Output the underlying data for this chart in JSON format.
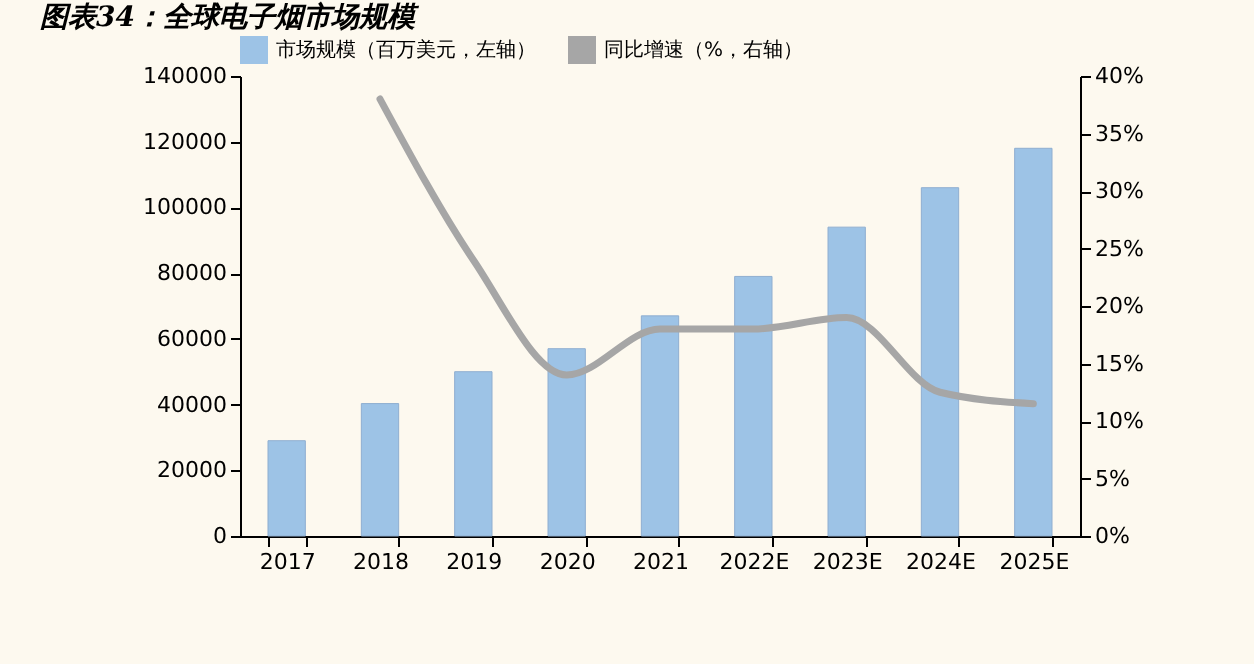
{
  "chart_data": {
    "type": "bar",
    "title": "图表34：全球电子烟市场规模",
    "categories": [
      "2017",
      "2018",
      "2019",
      "2020",
      "2021",
      "2022E",
      "2023E",
      "2024E",
      "2025E"
    ],
    "series": [
      {
        "name": "市场规模（百万美元，左轴）",
        "color": "#9dc3e6",
        "values": [
          29000,
          40300,
          50000,
          57000,
          67000,
          79000,
          94000,
          106000,
          118000
        ]
      },
      {
        "name": "同比增速（%，右轴）",
        "type": "line",
        "axis": "y2",
        "color": "#a6a6a6",
        "values": [
          null,
          38,
          24,
          14,
          18,
          18,
          19,
          12.5,
          11.5
        ]
      }
    ],
    "ylim": [
      0,
      140000
    ],
    "yticks": [
      0,
      20000,
      40000,
      60000,
      80000,
      100000,
      120000,
      140000
    ],
    "y2lim": [
      0,
      40
    ],
    "y2ticks": [
      {
        "value": 0,
        "label": "0%"
      },
      {
        "value": 5,
        "label": "5%"
      },
      {
        "value": 10,
        "label": "10%"
      },
      {
        "value": 15,
        "label": "15%"
      },
      {
        "value": 20,
        "label": "20%"
      },
      {
        "value": 25,
        "label": "25%"
      },
      {
        "value": 30,
        "label": "30%"
      },
      {
        "value": 35,
        "label": "35%"
      },
      {
        "value": 40,
        "label": "40%"
      }
    ],
    "legend": "top",
    "marker": "none",
    "line_style": "solid"
  }
}
